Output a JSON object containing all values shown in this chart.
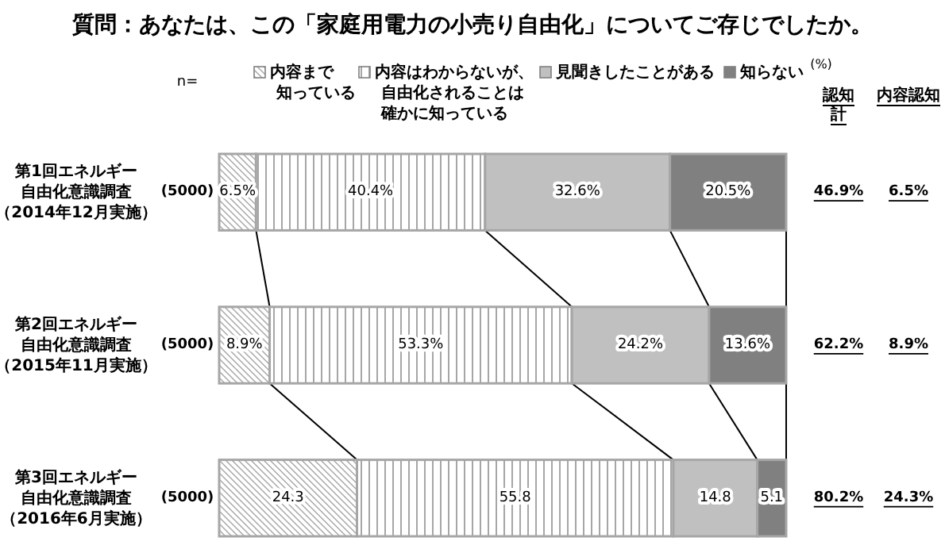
{
  "chart_data": {
    "type": "bar",
    "orientation": "horizontal",
    "stacked": true,
    "title": "質問：あなたは、この「家庭用電力の小売り自由化」についてご存じでしたか。",
    "categories": [
      "第1回エネルギー自由化意識調査（2014年12月実施）",
      "第2回エネルギー自由化意識調査（2015年11月実施）",
      "第3回エネルギー自由化意識調査（2016年6月実施）"
    ],
    "xlim": [
      0,
      100
    ],
    "tick_labels": "y",
    "legend": "top",
    "series": [
      {
        "name": "内容まで知っている",
        "color": "#a6a6a6",
        "values": [
          6.5,
          8.9,
          24.3
        ],
        "value_labels": [
          "6.5%",
          "8.9%",
          "24.3"
        ]
      },
      {
        "name": "内容はわからないが、自由化されることは確かに知っている",
        "color": "#a6a6a6",
        "values": [
          40.4,
          53.3,
          55.8
        ],
        "value_labels": [
          "40.4%",
          "53.3%",
          "55.8"
        ]
      },
      {
        "name": "見聞きしたことがある",
        "color": "#c0c0c0",
        "values": [
          32.6,
          24.2,
          14.8
        ],
        "value_labels": [
          "32.6%",
          "24.2%",
          "14.8"
        ]
      },
      {
        "name": "知らない",
        "color": "#808080",
        "values": [
          20.5,
          13.6,
          5.1
        ],
        "value_labels": [
          "20.5%",
          "13.6%",
          "5.1"
        ]
      }
    ],
    "annotations": [
      "n=",
      "(%)",
      "認知計",
      "内容認知",
      "(5000)",
      "46.9%",
      "6.5%",
      "(5000)",
      "62.2%",
      "8.9%",
      "(5000)",
      "80.2%",
      "24.3%"
    ]
  }
}
